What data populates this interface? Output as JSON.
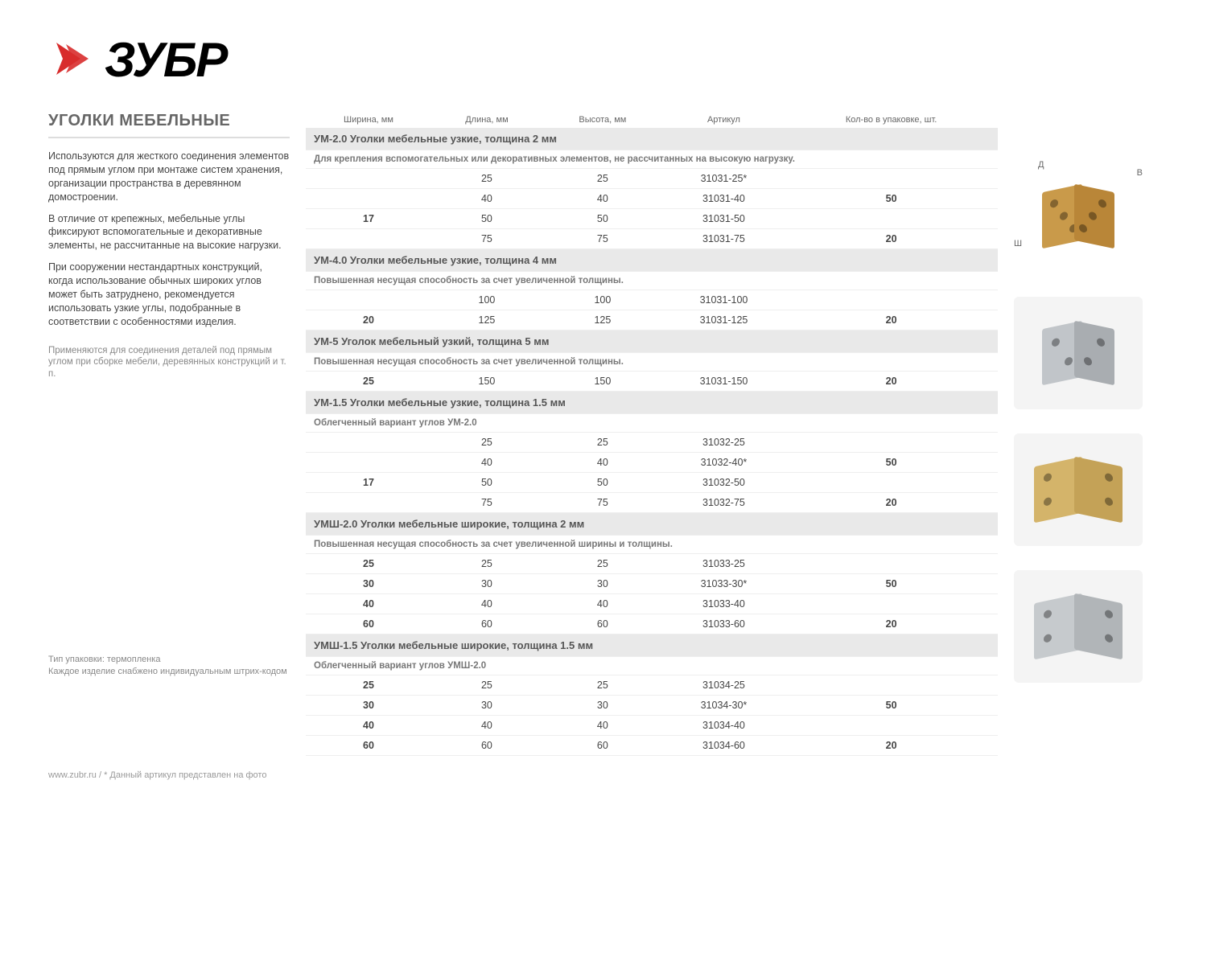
{
  "brand": {
    "name": "ЗУБР"
  },
  "page_title": "УГОЛКИ МЕБЕЛЬНЫЕ",
  "description": {
    "p1": "Используются для жесткого соединения элементов под прямым углом при монтаже систем хранения, организации пространства в деревянном домостроении.",
    "p2": "В отличие от крепежных, мебельные углы фиксируют вспомогательные и декоративные элементы, не рассчитанные на высокие нагрузки.",
    "p3": "При сооружении нестандартных конструкций, когда использование обычных широких углов может быть затруднено, рекомендуется использовать узкие углы, подобранные в соответствии с особенностями изделия.",
    "note": "Применяются для соединения деталей под прямым углом при сборке мебели, деревянных конструкций и т. п."
  },
  "packaging": {
    "line1": "Тип упаковки: термопленка",
    "line2": "Каждое изделие снабжено индивидуальным штрих-кодом"
  },
  "footer_text": "www.zubr.ru   /   * Данный артикул представлен на фото",
  "columns": {
    "c1": "Ширина, мм",
    "c2": "Длина, мм",
    "c3": "Высота, мм",
    "c4": "Артикул",
    "c5": "Кол-во в упаковке, шт."
  },
  "sections": [
    {
      "title": "УМ-2.0  Уголки мебельные узкие, толщина 2 мм",
      "sub": "Для крепления вспомогательных или декоративных элементов, не рассчитанных на высокую нагрузку.",
      "rows": [
        {
          "w": "",
          "l": "25",
          "h": "25",
          "art": "31031-25*",
          "qty": ""
        },
        {
          "w": "",
          "l": "40",
          "h": "40",
          "art": "31031-40",
          "qty": "50"
        },
        {
          "w": "17",
          "l": "50",
          "h": "50",
          "art": "31031-50",
          "qty": ""
        },
        {
          "w": "",
          "l": "75",
          "h": "75",
          "art": "31031-75",
          "qty": "20"
        }
      ],
      "width_span": "17",
      "qty_groups": [
        "50",
        "20"
      ]
    },
    {
      "title": "УМ-4.0  Уголки мебельные узкие, толщина 4 мм",
      "sub": "Повышенная несущая способность за счет увеличенной толщины.",
      "rows": [
        {
          "w": "",
          "l": "100",
          "h": "100",
          "art": "31031-100",
          "qty": ""
        },
        {
          "w": "20",
          "l": "125",
          "h": "125",
          "art": "31031-125",
          "qty": "20"
        }
      ]
    },
    {
      "title": "УМ-5  Уголок мебельный узкий, толщина 5 мм",
      "sub": "Повышенная несущая способность за счет увеличенной толщины.",
      "rows": [
        {
          "w": "25",
          "l": "150",
          "h": "150",
          "art": "31031-150",
          "qty": "20"
        }
      ]
    },
    {
      "title": "УМ-1.5  Уголки мебельные узкие, толщина 1.5 мм",
      "sub": "Облегченный вариант углов УМ-2.0",
      "rows": [
        {
          "w": "",
          "l": "25",
          "h": "25",
          "art": "31032-25",
          "qty": ""
        },
        {
          "w": "",
          "l": "40",
          "h": "40",
          "art": "31032-40*",
          "qty": "50"
        },
        {
          "w": "17",
          "l": "50",
          "h": "50",
          "art": "31032-50",
          "qty": ""
        },
        {
          "w": "",
          "l": "75",
          "h": "75",
          "art": "31032-75",
          "qty": "20"
        }
      ]
    },
    {
      "title": "УМШ-2.0  Уголки мебельные широкие, толщина 2 мм",
      "sub": "Повышенная несущая способность за счет увеличенной ширины и толщины.",
      "rows": [
        {
          "w": "25",
          "l": "25",
          "h": "25",
          "art": "31033-25",
          "qty": ""
        },
        {
          "w": "30",
          "l": "30",
          "h": "30",
          "art": "31033-30*",
          "qty": "50"
        },
        {
          "w": "40",
          "l": "40",
          "h": "40",
          "art": "31033-40",
          "qty": ""
        },
        {
          "w": "60",
          "l": "60",
          "h": "60",
          "art": "31033-60",
          "qty": "20"
        }
      ]
    },
    {
      "title": "УМШ-1.5  Уголки мебельные широкие, толщина 1.5 мм",
      "sub": "Облегченный вариант углов УМШ-2.0",
      "rows": [
        {
          "w": "25",
          "l": "25",
          "h": "25",
          "art": "31034-25",
          "qty": ""
        },
        {
          "w": "30",
          "l": "30",
          "h": "30",
          "art": "31034-30*",
          "qty": "50"
        },
        {
          "w": "40",
          "l": "40",
          "h": "40",
          "art": "31034-40",
          "qty": ""
        },
        {
          "w": "60",
          "l": "60",
          "h": "60",
          "art": "31034-60",
          "qty": "20"
        }
      ]
    }
  ],
  "diagrams": {
    "labels": {
      "D": "Д",
      "B": "В",
      "Sh": "Ш"
    },
    "colors": {
      "brass": "#c99a4a",
      "silver": "#b8bcc0",
      "gold_wide": "#d4b46a",
      "silver_wide": "#bfc3c6"
    }
  },
  "styles": {
    "section_bg": "#e9e9e9",
    "border_color": "#eeeeee",
    "text_color": "#444444",
    "muted_color": "#888888"
  }
}
